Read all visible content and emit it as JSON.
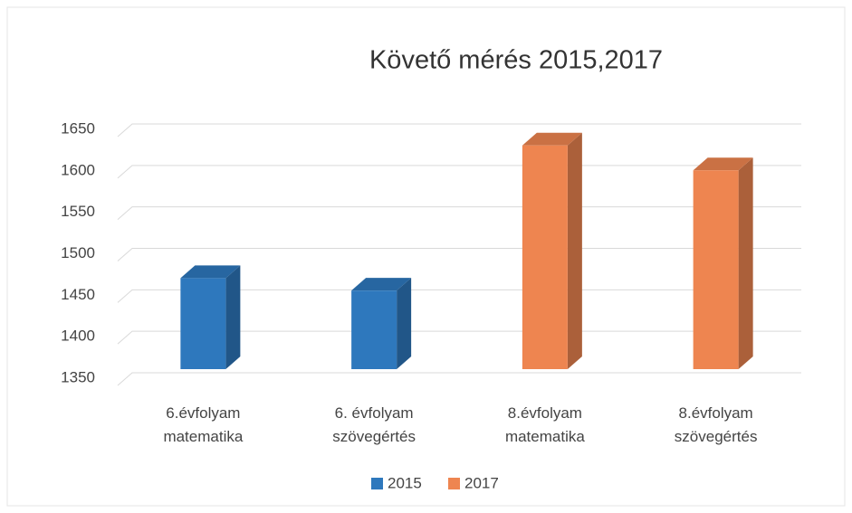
{
  "chart_data": {
    "type": "bar3d",
    "title": "Követő mérés 2015,2017",
    "categories": [
      "6.évfolyam matematika",
      "6. évfolyam szövegértés",
      "8.évfolyam matematika",
      "8.évfolyam szövegértés"
    ],
    "series": [
      {
        "name": "2015",
        "color": "#2e78bd",
        "values": [
          1475,
          1460,
          null,
          null
        ]
      },
      {
        "name": "2017",
        "color": "#ee8550",
        "values": [
          null,
          null,
          1635,
          1605
        ]
      }
    ],
    "ylim": [
      1350,
      1650
    ],
    "yticks": [
      1350,
      1400,
      1450,
      1500,
      1550,
      1600,
      1650
    ],
    "grid": true,
    "legend": "bottom"
  }
}
